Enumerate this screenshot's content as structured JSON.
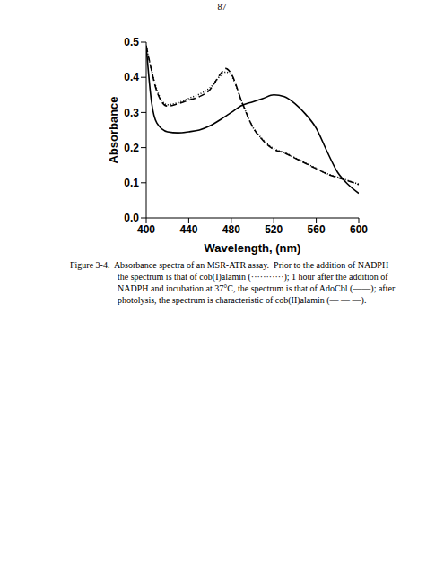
{
  "page_number": "87",
  "caption": [
    "Figure 3-4.  Absorbance spectra of an MSR-ATR assay.  Prior to the addition of NADPH",
    "the spectrum is that of cob(I)alamin (···········); 1 hour after the addition of",
    "NADPH and incubation at 37°C, the spectrum is that of AdoCbl (——); after",
    "photolysis, the spectrum is characteristic of cob(II)alamin (— — —)."
  ],
  "chart_data": {
    "type": "line",
    "x_label": "Wavelength, (nm)",
    "y_label": "Absorbance",
    "xlim": [
      400,
      600
    ],
    "xticks": [
      400,
      440,
      480,
      520,
      560,
      600
    ],
    "ylim": [
      0,
      0.5
    ],
    "yticks": [
      {
        "value": 0,
        "label": "0.0"
      },
      0.1,
      0.2,
      0.3,
      0.4,
      0.5
    ],
    "grid": false,
    "x": [
      400,
      405,
      410,
      420,
      430,
      440,
      450,
      460,
      470,
      475,
      480,
      490,
      500,
      510,
      520,
      530,
      540,
      550,
      560,
      570,
      580,
      590,
      600
    ],
    "series": [
      {
        "color": "#000000",
        "line_style": "dotted",
        "values": [
          0.49,
          0.42,
          0.365,
          0.322,
          0.328,
          0.34,
          0.352,
          0.37,
          0.405,
          0.415,
          0.405,
          0.33,
          0.26,
          0.222,
          0.197,
          0.186,
          0.171,
          0.156,
          0.141,
          0.126,
          0.116,
          0.106,
          0.096
        ]
      },
      {
        "color": "#000000",
        "line_style": "solid",
        "values": [
          0.49,
          0.33,
          0.27,
          0.245,
          0.242,
          0.245,
          0.25,
          0.262,
          0.28,
          0.29,
          0.3,
          0.32,
          0.33,
          0.34,
          0.35,
          0.345,
          0.325,
          0.295,
          0.255,
          0.19,
          0.13,
          0.095,
          0.07
        ]
      },
      {
        "color": "#000000",
        "line_style": "dashed",
        "values": [
          0.49,
          0.42,
          0.36,
          0.318,
          0.325,
          0.335,
          0.345,
          0.365,
          0.41,
          0.425,
          0.41,
          0.33,
          0.26,
          0.22,
          0.195,
          0.185,
          0.17,
          0.155,
          0.14,
          0.125,
          0.115,
          0.105,
          0.095
        ]
      }
    ]
  }
}
